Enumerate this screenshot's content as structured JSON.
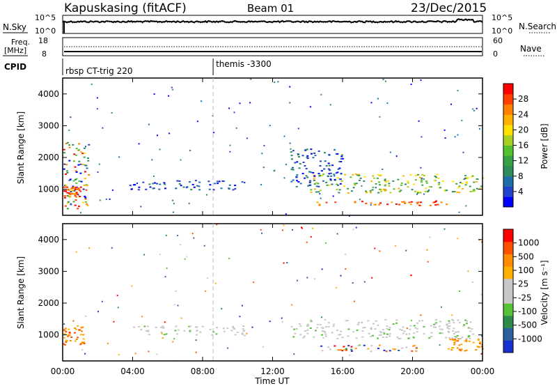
{
  "header": {
    "title": "Kapuskasing (fitACF)",
    "beam": "Beam 01",
    "date": "23/Dec/2015"
  },
  "noise_panel": {
    "left_label": "N.Sky",
    "right_label": "N.Search",
    "left_ticks": [
      "10^5",
      "10^0"
    ],
    "right_ticks": [
      "10^5",
      "10^0"
    ]
  },
  "freq_panel": {
    "left_label_line1": "Freq.",
    "left_label_line2": "[MHz]",
    "right_label": "Nave",
    "left_ticks": [
      "18",
      "8"
    ],
    "right_ticks": [
      "60",
      "0"
    ]
  },
  "cpid": {
    "label": "CPID",
    "segments": [
      {
        "start_hour": 0.0,
        "name": "rbsp CT-trig 220"
      },
      {
        "start_hour": 8.6,
        "name": "themis -3300"
      }
    ]
  },
  "time_axis": {
    "label": "Time UT",
    "ticks": [
      "00:00",
      "04:00",
      "08:00",
      "12:00",
      "16:00",
      "20:00",
      "00:00"
    ]
  },
  "power_panel": {
    "ylabel": "Slant Range [km]",
    "yticks": [
      "1000",
      "2000",
      "3000",
      "4000"
    ],
    "colorbar_label": "Power [dB]",
    "colorbar_ticks": [
      "4",
      "8",
      "12",
      "16",
      "20",
      "24",
      "28"
    ],
    "colors": [
      "#0000ff",
      "#2244cc",
      "#1f6ea8",
      "#2f8b5c",
      "#3aa046",
      "#55c030",
      "#a8d020",
      "#ffe000",
      "#ffb000",
      "#ff8000",
      "#ff4000",
      "#ff0000"
    ]
  },
  "velocity_panel": {
    "ylabel": "Slant Range [km]",
    "yticks": [
      "1000",
      "2000",
      "3000",
      "4000"
    ],
    "colorbar_label": "Velocity [m s⁻¹]",
    "colorbar_ticks": [
      "1000",
      "500",
      "100",
      "25",
      "-25",
      "-100",
      "-500",
      "-1000"
    ],
    "colors": [
      "#1a2fd0",
      "#2a60a0",
      "#2e8a4a",
      "#56c238",
      "#c8c8c8",
      "#c8c8c8",
      "#ffb000",
      "#ff8c00",
      "#ff5000",
      "#ff0000"
    ]
  },
  "chart_data": {
    "type": "heatmap",
    "title": "Kapuskasing (fitACF)",
    "xlabel": "Time UT",
    "ylabel": "Slant Range [km]",
    "xlim_hours": [
      0,
      24
    ],
    "ylim_km": [
      180,
      4500
    ],
    "vertical_marker_hour": 8.6,
    "power_features": [
      {
        "t": [
          0.0,
          1.5
        ],
        "r": [
          400,
          2500
        ],
        "level": "mixed"
      },
      {
        "t": [
          0.0,
          1.0
        ],
        "r": [
          700,
          1100
        ],
        "level": "high"
      },
      {
        "t": [
          3.8,
          10.5
        ],
        "r": [
          1000,
          1300
        ],
        "level": "low"
      },
      {
        "t": [
          14.0,
          24.0
        ],
        "r": [
          900,
          1500
        ],
        "level": "mid"
      },
      {
        "t": [
          14.5,
          22.0
        ],
        "r": [
          500,
          650
        ],
        "level": "high"
      },
      {
        "t": [
          13.0,
          16.0
        ],
        "r": [
          1100,
          2300
        ],
        "level": "low"
      }
    ],
    "velocity_features": [
      {
        "t": [
          0.0,
          1.2
        ],
        "r": [
          700,
          1300
        ],
        "velocity": "negative"
      },
      {
        "t": [
          4.0,
          10.5
        ],
        "r": [
          1000,
          1300
        ],
        "velocity": "near zero"
      },
      {
        "t": [
          13.0,
          23.5
        ],
        "r": [
          900,
          1500
        ],
        "velocity": "near zero"
      },
      {
        "t": [
          14.5,
          20.5
        ],
        "r": [
          500,
          700
        ],
        "velocity": "mixed"
      },
      {
        "t": [
          22.0,
          24.0
        ],
        "r": [
          500,
          900
        ],
        "velocity": "negative"
      }
    ]
  }
}
